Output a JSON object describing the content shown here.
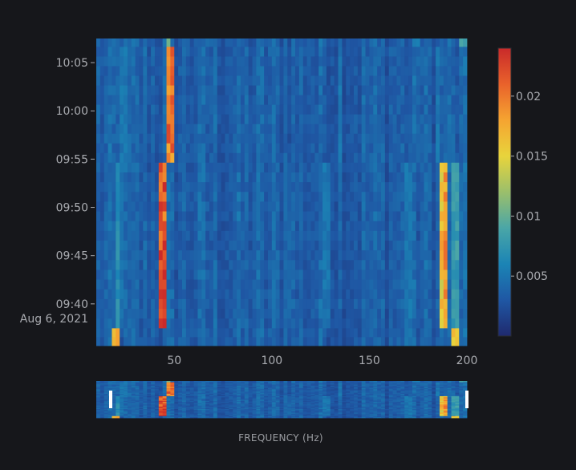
{
  "chart_data": {
    "type": "heatmap",
    "title": "",
    "xlabel": "FREQUENCY (Hz)",
    "ylabel": "",
    "x_range": [
      10,
      200
    ],
    "x_ticks": [
      50,
      100,
      150,
      200
    ],
    "y_range": [
      "2021-08-06 09:35:40",
      "2021-08-06 10:07:30"
    ],
    "y_ticks": [
      {
        "time": "10:05",
        "label": "10:05"
      },
      {
        "time": "10:00",
        "label": "10:00"
      },
      {
        "time": "09:55",
        "label": "09:55"
      },
      {
        "time": "09:50",
        "label": "09:50"
      },
      {
        "time": "09:45",
        "label": "09:45"
      },
      {
        "time": "09:40",
        "label": "09:40",
        "date_label": "Aug 6, 2021"
      }
    ],
    "colorscale": [
      "#1f2a6e",
      "#1f57a4",
      "#1b84b5",
      "#4aa6a7",
      "#9bbf6b",
      "#e8d43c",
      "#f5a431",
      "#e9622b",
      "#c92a2a"
    ],
    "colorbar": {
      "range": [
        0,
        0.024
      ],
      "ticks": [
        {
          "value": 0.005,
          "label": "0.005"
        },
        {
          "value": 0.01,
          "label": "0.01"
        },
        {
          "value": 0.015,
          "label": "0.015"
        },
        {
          "value": 0.02,
          "label": "0.02"
        }
      ]
    },
    "segments": [
      {
        "t_start": "09:35:40",
        "t_end": "09:37:30",
        "peaks": [
          [
            19,
            0.012
          ],
          [
            20,
            0.016
          ],
          [
            193,
            0.014
          ],
          [
            194,
            0.016
          ],
          [
            170,
            0.005
          ]
        ]
      },
      {
        "t_start": "09:37:30",
        "t_end": "09:54:40",
        "peaks": [
          [
            43,
            0.02
          ],
          [
            44,
            0.022
          ],
          [
            45,
            0.009
          ],
          [
            21,
            0.007
          ],
          [
            22,
            0.005
          ],
          [
            108,
            0.004
          ],
          [
            128,
            0.005
          ],
          [
            170,
            0.005
          ],
          [
            188,
            0.016
          ],
          [
            189,
            0.018
          ],
          [
            194,
            0.008
          ]
        ]
      },
      {
        "t_start": "09:54:40",
        "t_end": "10:06:40",
        "peaks": [
          [
            47,
            0.018
          ],
          [
            48,
            0.02
          ],
          [
            24,
            0.005
          ],
          [
            70,
            0.003
          ],
          [
            135,
            0.005
          ],
          [
            175,
            0.004
          ],
          [
            185,
            0.005
          ],
          [
            190,
            0.004
          ]
        ]
      },
      {
        "t_start": "10:06:40",
        "t_end": "10:07:30",
        "peaks": [
          [
            47,
            0.01
          ],
          [
            68,
            0.004
          ],
          [
            175,
            0.005
          ],
          [
            198,
            0.008
          ]
        ]
      }
    ]
  }
}
